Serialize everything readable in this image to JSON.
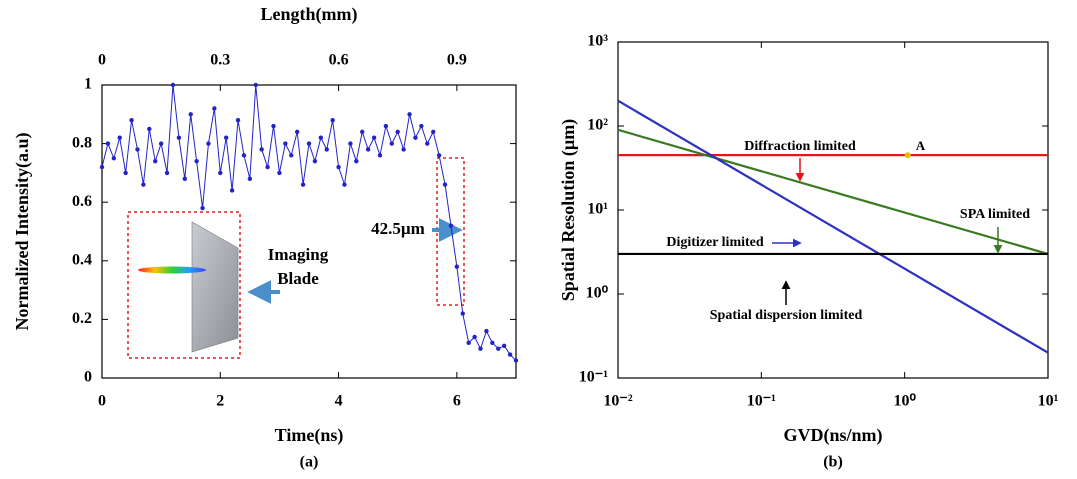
{
  "chart_data": [
    {
      "type": "line",
      "xlabel": "Time(ns)",
      "ylabel": "Normalized Intensity(a.u)",
      "x2label": "Length(mm)",
      "panel_label": "(a)",
      "xlim": [
        0,
        7
      ],
      "xticks": [
        0,
        2,
        4,
        6
      ],
      "x2lim": [
        0,
        1.05
      ],
      "x2ticks": [
        0,
        0.3,
        0.6,
        0.9
      ],
      "ylim": [
        0,
        1
      ],
      "yticks": [
        0,
        0.2,
        0.4,
        0.6,
        0.8,
        1
      ],
      "markers": true,
      "x": [
        0,
        0.1,
        0.2,
        0.3,
        0.4,
        0.5,
        0.6,
        0.7,
        0.8,
        0.9,
        1,
        1.1,
        1.2,
        1.3,
        1.4,
        1.5,
        1.6,
        1.7,
        1.8,
        1.9,
        2,
        2.1,
        2.2,
        2.3,
        2.4,
        2.5,
        2.6,
        2.7,
        2.8,
        2.9,
        3,
        3.1,
        3.2,
        3.3,
        3.4,
        3.5,
        3.6,
        3.7,
        3.8,
        3.9,
        4,
        4.1,
        4.2,
        4.3,
        4.4,
        4.5,
        4.6,
        4.7,
        4.8,
        4.9,
        5,
        5.1,
        5.2,
        5.3,
        5.4,
        5.5,
        5.6,
        5.7,
        5.8,
        5.9,
        6,
        6.1,
        6.2,
        6.3,
        6.4,
        6.5,
        6.6,
        6.7,
        6.8,
        6.9,
        7
      ],
      "series": [
        {
          "color": "#2323c8",
          "values": [
            0.72,
            0.8,
            0.75,
            0.82,
            0.7,
            0.88,
            0.78,
            0.66,
            0.85,
            0.74,
            0.8,
            0.7,
            1,
            0.82,
            0.68,
            0.9,
            0.74,
            0.58,
            0.8,
            0.92,
            0.7,
            0.82,
            0.64,
            0.88,
            0.76,
            0.68,
            1,
            0.78,
            0.72,
            0.86,
            0.7,
            0.8,
            0.76,
            0.84,
            0.66,
            0.8,
            0.74,
            0.82,
            0.78,
            0.88,
            0.72,
            0.66,
            0.8,
            0.74,
            0.84,
            0.78,
            0.82,
            0.76,
            0.86,
            0.8,
            0.84,
            0.78,
            0.9,
            0.82,
            0.86,
            0.8,
            0.84,
            0.76,
            0.66,
            0.52,
            0.38,
            0.22,
            0.12,
            0.14,
            0.1,
            0.16,
            0.12,
            0.1,
            0.11,
            0.08,
            0.06
          ]
        }
      ],
      "annotations": [
        {
          "text": "42.5µm"
        },
        {
          "text": "Imaging"
        },
        {
          "text": "Blade"
        }
      ]
    },
    {
      "type": "line",
      "log_x": true,
      "log_y": true,
      "xlabel": "GVD(ns/nm)",
      "ylabel": "Spatial Resolution (µm)",
      "panel_label": "(b)",
      "xlim": [
        0.01,
        10
      ],
      "xticks": [
        {
          "value": 0.01,
          "label": "10⁻²"
        },
        {
          "value": 0.1,
          "label": "10⁻¹"
        },
        {
          "value": 1,
          "label": "10⁰"
        },
        {
          "value": 10,
          "label": "10¹"
        }
      ],
      "ylim": [
        0.1,
        1000
      ],
      "yticks": [
        {
          "value": 0.1,
          "label": "10⁻¹"
        },
        {
          "value": 1,
          "label": "10⁰"
        },
        {
          "value": 10,
          "label": "10¹"
        },
        {
          "value": 100,
          "label": "10²"
        },
        {
          "value": 1000,
          "label": "10³"
        }
      ],
      "x": [
        0.01,
        10
      ],
      "series": [
        {
          "name": "Diffraction limited",
          "color": "#e8141c",
          "values": [
            45,
            45
          ]
        },
        {
          "name": "SPA limited",
          "color": "#3a7a22",
          "values": [
            90,
            3
          ]
        },
        {
          "name": "Digitizer limited",
          "color": "#2a32c0",
          "values": [
            200,
            0.2
          ]
        },
        {
          "name": "Spatial dispersion limited",
          "color": "#000000",
          "values": [
            3,
            3
          ]
        }
      ],
      "annotations": [
        {
          "text": "A",
          "x": 1.05,
          "y": 45,
          "color": "#e8c000"
        }
      ]
    }
  ]
}
